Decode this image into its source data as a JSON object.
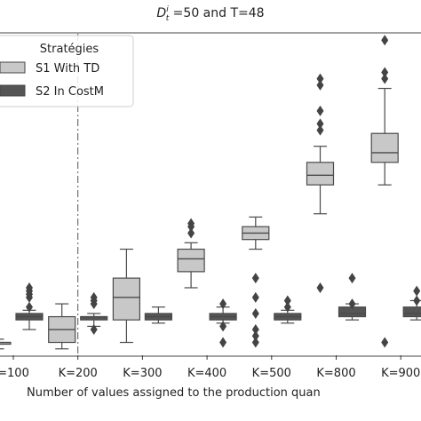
{
  "chart_data": {
    "type": "box",
    "title": "D",
    "title_sup": "i",
    "title_sub": "t",
    "title_rest": " =50 and T=48",
    "xlabel": "Number of values assigned to the production quan",
    "ylabel": "",
    "categories": [
      "=100",
      "K=200",
      "K=300",
      "K=400",
      "K=500",
      "K=800",
      "K=900"
    ],
    "y_range": [
      0,
      100
    ],
    "grid": false,
    "legend": {
      "title": "Stratégies",
      "placement": "top-left",
      "entries": [
        "S1 With TD",
        "S2 In CostM"
      ]
    },
    "reference_line": {
      "category": "K=200",
      "style": "dash-dot"
    },
    "series": [
      {
        "name": "S1 With TD",
        "color": "#c8c8c8",
        "boxes": [
          {
            "category": "=100",
            "whislo": 2,
            "q1": 4,
            "median": 4,
            "q3": 4,
            "whishi": 5,
            "fliers": []
          },
          {
            "category": "K=200",
            "whislo": 2,
            "q1": 4,
            "median": 8,
            "q3": 12,
            "whishi": 16,
            "fliers": []
          },
          {
            "category": "K=300",
            "whislo": 4,
            "q1": 11,
            "median": 18,
            "q3": 24,
            "whishi": 33,
            "fliers": []
          },
          {
            "category": "K=400",
            "whislo": 21,
            "q1": 26,
            "median": 30,
            "q3": 33,
            "whishi": 35,
            "fliers": [
              38,
              40,
              41
            ]
          },
          {
            "category": "K=500",
            "whislo": 33,
            "q1": 36,
            "median": 38,
            "q3": 40,
            "whishi": 43,
            "fliers": [
              4,
              6,
              8,
              13,
              18,
              24
            ]
          },
          {
            "category": "K=800",
            "whislo": 44,
            "q1": 53,
            "median": 56,
            "q3": 60,
            "whishi": 65,
            "fliers": [
              21,
              70,
              72,
              76,
              84,
              86
            ]
          },
          {
            "category": "K=900",
            "whislo": 53,
            "q1": 60,
            "median": 63,
            "q3": 69,
            "whishi": 83,
            "fliers": [
              4,
              86,
              88,
              98
            ]
          }
        ]
      },
      {
        "name": "S2 In CostM",
        "color": "#555555",
        "boxes": [
          {
            "category": "=100",
            "whislo": 8,
            "q1": 11,
            "median": 12,
            "q3": 13,
            "whishi": 14,
            "fliers": [
              15,
              18,
              19,
              20,
              21
            ]
          },
          {
            "category": "K=200",
            "whislo": 9,
            "q1": 11,
            "median": 12,
            "q3": 12,
            "whishi": 13,
            "fliers": [
              8,
              16,
              17,
              18
            ]
          },
          {
            "category": "K=300",
            "whislo": 10,
            "q1": 11,
            "median": 12,
            "q3": 13,
            "whishi": 15,
            "fliers": []
          },
          {
            "category": "K=400",
            "whislo": 10,
            "q1": 11,
            "median": 12,
            "q3": 13,
            "whishi": 15,
            "fliers": [
              4,
              9,
              16
            ]
          },
          {
            "category": "K=500",
            "whislo": 10,
            "q1": 11,
            "median": 12,
            "q3": 13,
            "whishi": 14,
            "fliers": [
              15,
              17
            ]
          },
          {
            "category": "K=800",
            "whislo": 11,
            "q1": 12,
            "median": 13,
            "q3": 15,
            "whishi": 16,
            "fliers": [
              16,
              24
            ]
          },
          {
            "category": "K=900",
            "whislo": 11,
            "q1": 12,
            "median": 13,
            "q3": 15,
            "whishi": 17,
            "fliers": [
              17,
              20
            ]
          }
        ]
      }
    ]
  }
}
